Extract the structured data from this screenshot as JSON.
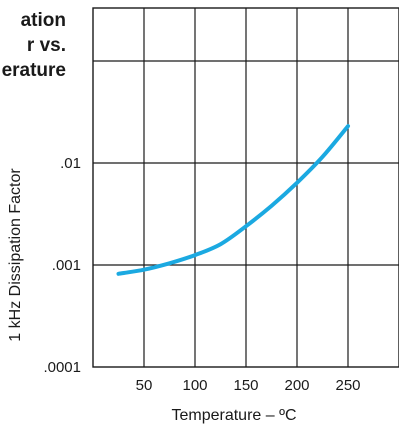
{
  "chart_data": {
    "type": "line",
    "title_lines": [
      "ation",
      "r vs.",
      "erature"
    ],
    "xlabel": "Temperature – ºC",
    "ylabel": "1 kHz Dissipation Factor",
    "x_ticks": [
      "50",
      "100",
      "150",
      "200",
      "250"
    ],
    "y_ticks": [
      ".01",
      ".001",
      ".0001"
    ],
    "xlim": [
      0,
      300
    ],
    "yscale": "log",
    "ylim": [
      0.0001,
      0.1
    ],
    "grid": true,
    "series": [
      {
        "color": "#1ba9e1",
        "x": [
          25,
          50,
          75,
          100,
          125,
          150,
          175,
          200,
          225,
          250
        ],
        "y": [
          0.00082,
          0.0009,
          0.00104,
          0.00125,
          0.0016,
          0.0024,
          0.0038,
          0.0064,
          0.0115,
          0.023
        ]
      }
    ]
  }
}
